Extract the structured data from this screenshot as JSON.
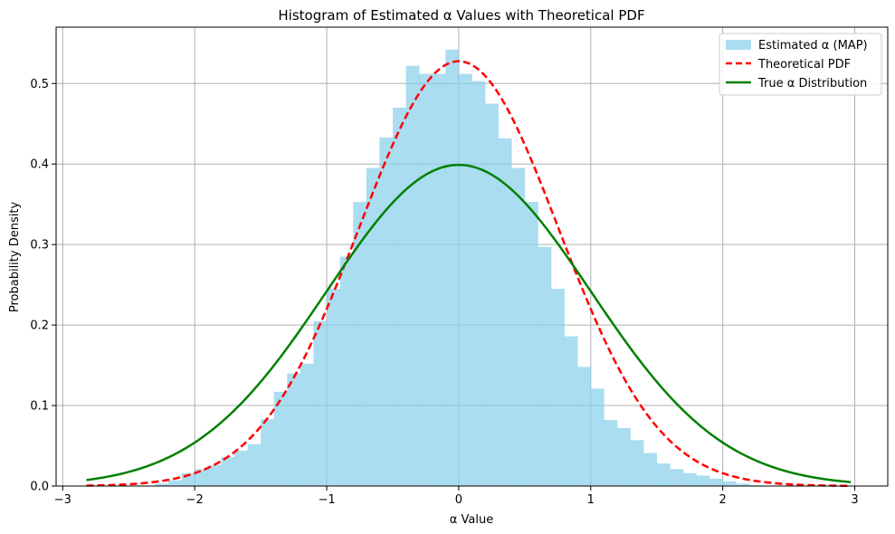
{
  "chart_data": {
    "type": "histogram",
    "title": "Histogram of Estimated α Values with Theoretical PDF",
    "xlabel": "α Value",
    "ylabel": "Probability Density",
    "xlim": [
      -3.05,
      3.25
    ],
    "ylim": [
      0,
      0.57
    ],
    "xticks": [
      -3,
      -2,
      -1,
      0,
      1,
      2,
      3
    ],
    "xtick_labels": [
      "−3",
      "−2",
      "−1",
      "0",
      "1",
      "2",
      "3"
    ],
    "yticks": [
      0.0,
      0.1,
      0.2,
      0.3,
      0.4,
      0.5
    ],
    "ytick_labels": [
      "0.0",
      "0.1",
      "0.2",
      "0.3",
      "0.4",
      "0.5"
    ],
    "grid": true,
    "legend": {
      "location": "upper right",
      "entries": [
        {
          "label": "Estimated α (MAP)",
          "style": "patch",
          "color": "#87CEEB"
        },
        {
          "label": "Theoretical PDF",
          "style": "dashed",
          "color": "#FF0000"
        },
        {
          "label": "True α Distribution",
          "style": "solid",
          "color": "#008000"
        }
      ]
    },
    "histogram": {
      "name": "Estimated α (MAP)",
      "color": "#87CEEB",
      "opacity": 0.7,
      "bin_edges": [
        -2.3,
        -2.2,
        -2.1,
        -2.0,
        -1.9,
        -1.8,
        -1.7,
        -1.6,
        -1.5,
        -1.4,
        -1.3,
        -1.2,
        -1.1,
        -1.0,
        -0.9,
        -0.8,
        -0.7,
        -0.6,
        -0.5,
        -0.4,
        -0.3,
        -0.2,
        -0.1,
        0.0,
        0.1,
        0.2,
        0.3,
        0.4,
        0.5,
        0.6,
        0.7,
        0.8,
        0.9,
        1.0,
        1.1,
        1.2,
        1.3,
        1.4,
        1.5,
        1.6,
        1.7,
        1.8,
        1.9,
        2.0,
        2.1,
        2.2,
        2.3
      ],
      "densities": [
        0.003,
        0.007,
        0.016,
        0.021,
        0.026,
        0.036,
        0.044,
        0.052,
        0.083,
        0.117,
        0.14,
        0.152,
        0.205,
        0.245,
        0.285,
        0.353,
        0.395,
        0.433,
        0.47,
        0.522,
        0.512,
        0.512,
        0.542,
        0.512,
        0.503,
        0.475,
        0.432,
        0.395,
        0.353,
        0.297,
        0.245,
        0.186,
        0.148,
        0.121,
        0.082,
        0.072,
        0.057,
        0.041,
        0.028,
        0.021,
        0.016,
        0.013,
        0.009,
        0.006,
        0.003,
        0.001
      ]
    },
    "series": [
      {
        "name": "Theoretical PDF",
        "type": "line",
        "style": "dashed",
        "color": "#FF0000",
        "distribution": "normal",
        "mean": 0.0,
        "std": 0.756,
        "x_range": [
          -2.82,
          2.97
        ]
      },
      {
        "name": "True α Distribution",
        "type": "line",
        "style": "solid",
        "color": "#008000",
        "distribution": "normal",
        "mean": 0.0,
        "std": 1.0,
        "x_range": [
          -2.82,
          2.97
        ]
      }
    ]
  }
}
